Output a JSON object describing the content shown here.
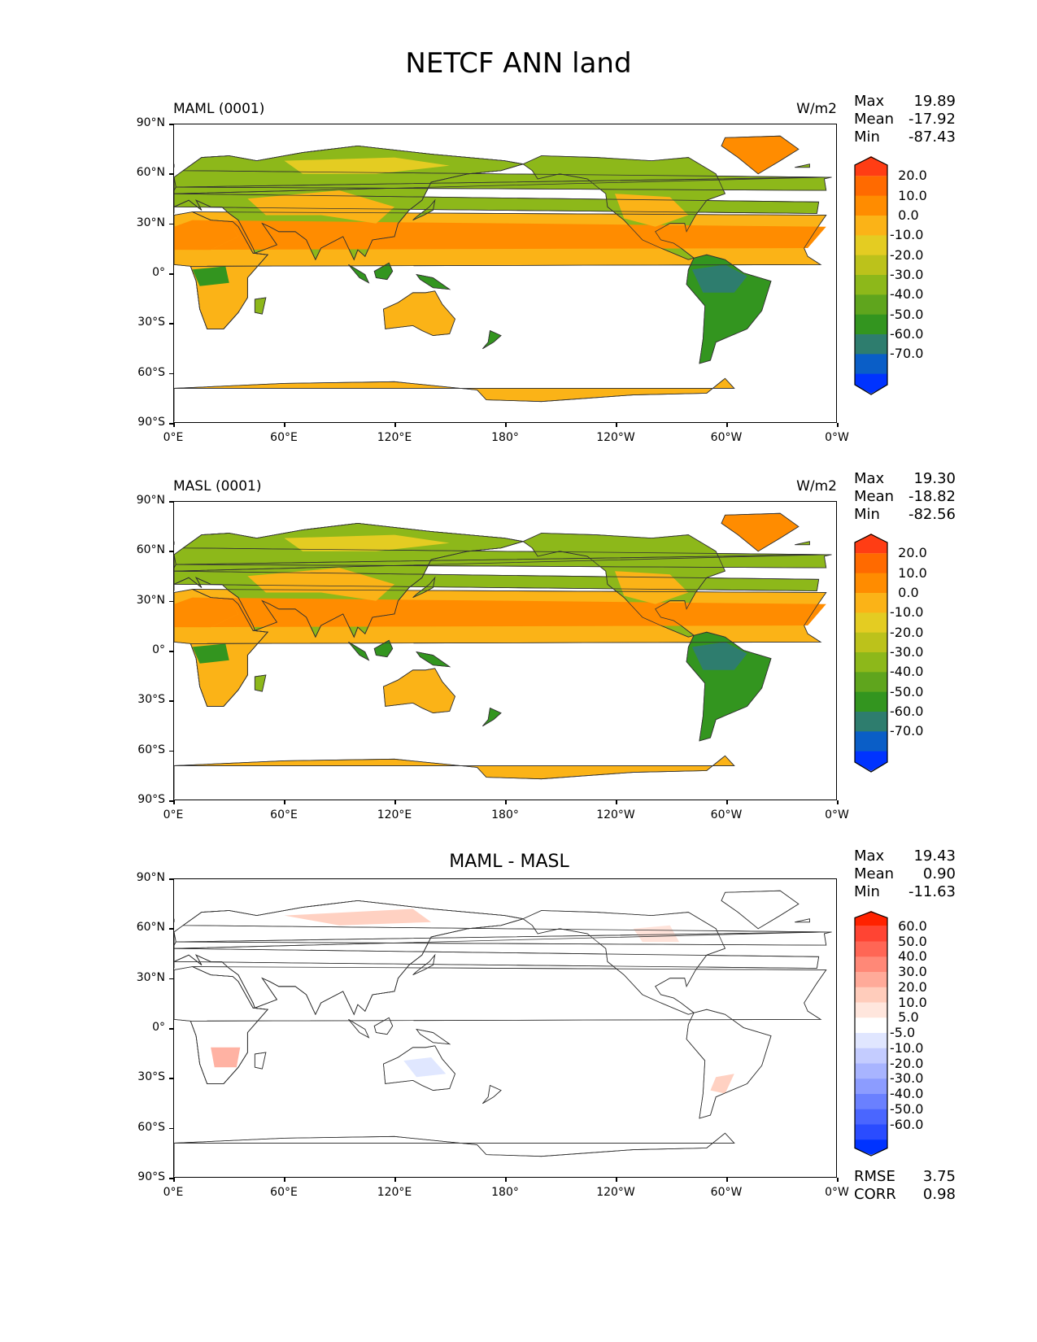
{
  "title": "NETCF ANN land",
  "x_ticks": [
    "0°E",
    "60°E",
    "120°E",
    "180°",
    "120°W",
    "60°W",
    "0°W"
  ],
  "y_ticks": [
    "90°N",
    "60°N",
    "30°N",
    "0°",
    "30°S",
    "60°S",
    "90°S"
  ],
  "panels": [
    {
      "id": "maml",
      "left_title": "MAML (0001)",
      "center_title": "",
      "units": "W/m2",
      "stats": [
        {
          "label": "Max",
          "value": "19.89"
        },
        {
          "label": "Mean",
          "value": "-17.92"
        },
        {
          "label": "Min",
          "value": "-87.43"
        }
      ],
      "colorbar": {
        "labels": [
          "20.0",
          "10.0",
          "0.0",
          "-10.0",
          "-20.0",
          "-30.0",
          "-40.0",
          "-50.0",
          "-60.0",
          "-70.0"
        ],
        "colors": [
          "#ff3d14",
          "#ff6a00",
          "#ff8c00",
          "#fbb317",
          "#e4cc22",
          "#bcc21b",
          "#8db81a",
          "#5fa51d",
          "#33951f",
          "#2e7d6e",
          "#0a5ec7",
          "#0033ff"
        ]
      }
    },
    {
      "id": "masl",
      "left_title": "MASL (0001)",
      "center_title": "",
      "units": "W/m2",
      "stats": [
        {
          "label": "Max",
          "value": "19.30"
        },
        {
          "label": "Mean",
          "value": "-18.82"
        },
        {
          "label": "Min",
          "value": "-82.56"
        }
      ],
      "colorbar": {
        "labels": [
          "20.0",
          "10.0",
          "0.0",
          "-10.0",
          "-20.0",
          "-30.0",
          "-40.0",
          "-50.0",
          "-60.0",
          "-70.0"
        ],
        "colors": [
          "#ff3d14",
          "#ff6a00",
          "#ff8c00",
          "#fbb317",
          "#e4cc22",
          "#bcc21b",
          "#8db81a",
          "#5fa51d",
          "#33951f",
          "#2e7d6e",
          "#0a5ec7",
          "#0033ff"
        ]
      }
    },
    {
      "id": "diff",
      "left_title": "",
      "center_title": "MAML - MASL",
      "units": "",
      "stats": [
        {
          "label": "Max",
          "value": "19.43"
        },
        {
          "label": "Mean",
          "value": "0.90"
        },
        {
          "label": "Min",
          "value": "-11.63"
        }
      ],
      "colorbar": {
        "labels": [
          "60.0",
          "50.0",
          "40.0",
          "30.0",
          "20.0",
          "10.0",
          "5.0",
          "-5.0",
          "-10.0",
          "-20.0",
          "-30.0",
          "-40.0",
          "-50.0",
          "-60.0"
        ],
        "colors": [
          "#ff2200",
          "#ff4433",
          "#ff6655",
          "#ff8877",
          "#ffaa99",
          "#ffccbb",
          "#ffe6dd",
          "#ffffff",
          "#e0e6ff",
          "#c4ccff",
          "#a8b4ff",
          "#8c9cff",
          "#6a80ff",
          "#4a66ff",
          "#2a4cff",
          "#0033ff"
        ]
      },
      "footer_stats": [
        {
          "label": "RMSE",
          "value": "3.75"
        },
        {
          "label": "CORR",
          "value": "0.98"
        }
      ]
    }
  ],
  "colors": {
    "ocean": "#ffffff",
    "antarctica": "#fbb317",
    "greenland": "#ff8c00",
    "sahara": "#ff8c00",
    "boreal": "#8db81a",
    "midlat": "#fbb317",
    "tropics": "#33951f",
    "coast": "#333333"
  }
}
